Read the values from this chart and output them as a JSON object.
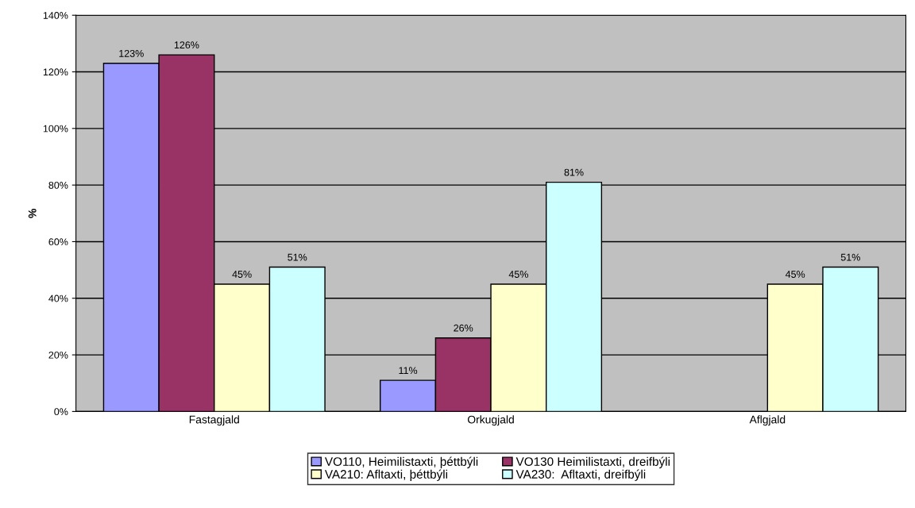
{
  "chart_data": {
    "type": "bar",
    "ylabel": "%",
    "categories": [
      "Fastagjald",
      "Orkugjald",
      "Aflgjald"
    ],
    "series": [
      {
        "name": "VO110, Heimilistaxti, þéttbýli",
        "color": "#9999ff",
        "values": [
          123,
          11,
          null
        ],
        "value_labels": [
          "123%",
          "11%",
          null
        ]
      },
      {
        "name": "VO130 Heimilistaxti, dreifbýli",
        "color": "#993366",
        "values": [
          126,
          26,
          null
        ],
        "value_labels": [
          "126%",
          "26%",
          null
        ]
      },
      {
        "name": "VA210: Afltaxti, þéttbýli",
        "color": "#ffffcc",
        "values": [
          45,
          45,
          45
        ],
        "value_labels": [
          "45%",
          "45%",
          "45%"
        ]
      },
      {
        "name": "VA230:  Afltaxti, dreifbýli",
        "color": "#ccffff",
        "values": [
          51,
          81,
          51
        ],
        "value_labels": [
          "51%",
          "81%",
          "51%"
        ]
      }
    ],
    "ylim": [
      0,
      140
    ],
    "yticks": [
      {
        "value": 0,
        "label": "0%"
      },
      {
        "value": 20,
        "label": "20%"
      },
      {
        "value": 40,
        "label": "40%"
      },
      {
        "value": 60,
        "label": "60%"
      },
      {
        "value": 80,
        "label": "80%"
      },
      {
        "value": 100,
        "label": "100%"
      },
      {
        "value": 120,
        "label": "120%"
      },
      {
        "value": 140,
        "label": "140%"
      }
    ],
    "grid": "y",
    "legend": "bottom"
  }
}
